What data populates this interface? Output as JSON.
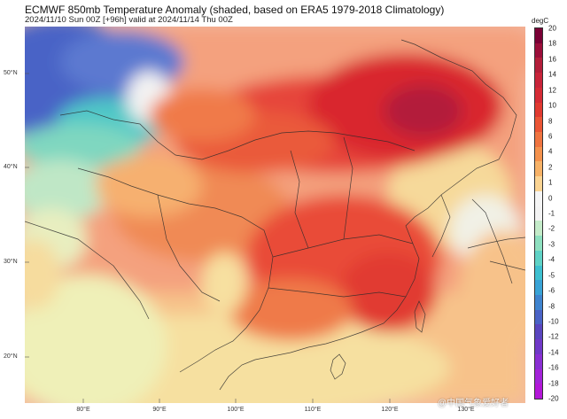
{
  "header": {
    "title": "ECMWF 850mb Temperature Anomaly (shaded, based on ERA5 1979-2018 Climatology)",
    "subtitle": "2024/11/10 Sun 00Z [+96h] valid at 2024/11/14 Thu 00Z"
  },
  "map": {
    "lat_labels": [
      "50°N",
      "40°N",
      "30°N",
      "20°N"
    ],
    "lon_labels": [
      "80°E",
      "90°E",
      "100°E",
      "110°E",
      "120°E",
      "130°E"
    ]
  },
  "colorbar": {
    "unit": "degC",
    "ticks": [
      "20",
      "18",
      "16",
      "14",
      "12",
      "10",
      "8",
      "6",
      "4",
      "2",
      "1",
      "0",
      "-1",
      "-2",
      "-3",
      "-4",
      "-5",
      "-6",
      "-8",
      "-10",
      "-12",
      "-14",
      "-16",
      "-18",
      "-20"
    ],
    "colors": [
      "#7a0035",
      "#9b0e3a",
      "#b31e3a",
      "#c8243a",
      "#d52b35",
      "#e03a30",
      "#ea5535",
      "#ef7440",
      "#f4924d",
      "#f7b267",
      "#fbd493",
      "#f5f5f5",
      "#f3f3f3",
      "#c4ebc9",
      "#8ee0c0",
      "#5fd2c6",
      "#3ec0d0",
      "#39a3d6",
      "#3f84cf",
      "#4a63c6",
      "#5a46bf",
      "#7039c8",
      "#8a2fd3",
      "#a323d9",
      "#b317d8"
    ]
  },
  "watermark": "@中国气象爱好者"
}
